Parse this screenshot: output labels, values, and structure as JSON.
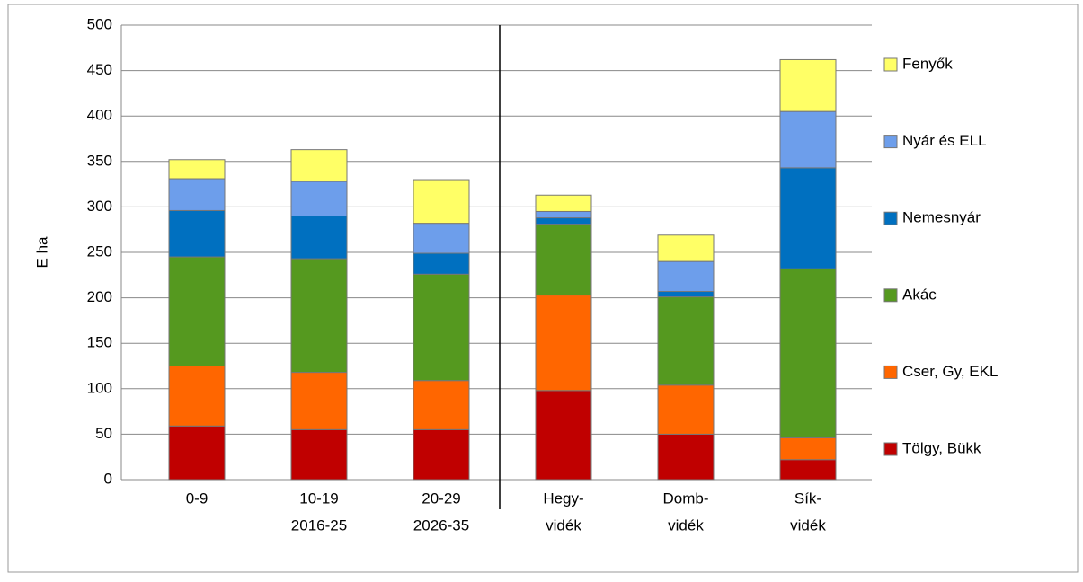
{
  "chart_data": {
    "type": "stacked_bar",
    "y_label": "E ha",
    "categories": [
      [
        "0-9"
      ],
      [
        "10-19",
        "2016-25"
      ],
      [
        "20-29",
        "2026-35"
      ],
      [
        "Hegy-",
        "vidék"
      ],
      [
        "Domb-",
        "vidék"
      ],
      [
        "Sík-",
        "vidék"
      ]
    ],
    "series": [
      {
        "name": "Tölgy, Bükk",
        "color": "#c00000",
        "values": [
          59,
          55,
          55,
          98,
          50,
          22
        ]
      },
      {
        "name": "Cser, Gy, EKL",
        "color": "#ff6600",
        "values": [
          66,
          63,
          54,
          105,
          54,
          24
        ]
      },
      {
        "name": "Akác",
        "color": "#55991f",
        "values": [
          120,
          125,
          117,
          78,
          97,
          186
        ]
      },
      {
        "name": "Nemesnyár",
        "color": "#0070c0",
        "values": [
          51,
          47,
          23,
          7,
          6,
          111
        ]
      },
      {
        "name": "Nyár és ELL",
        "color": "#6d9eeb",
        "values": [
          35,
          38,
          33,
          7,
          33,
          62
        ]
      },
      {
        "name": "Fenyők",
        "color": "#ffff66",
        "values": [
          21,
          35,
          48,
          18,
          29,
          57
        ]
      }
    ],
    "ylim": [
      0,
      500
    ],
    "yticks": [
      0,
      50,
      100,
      150,
      200,
      250,
      300,
      350,
      400,
      450,
      500
    ],
    "grid": true,
    "legend": "right"
  }
}
